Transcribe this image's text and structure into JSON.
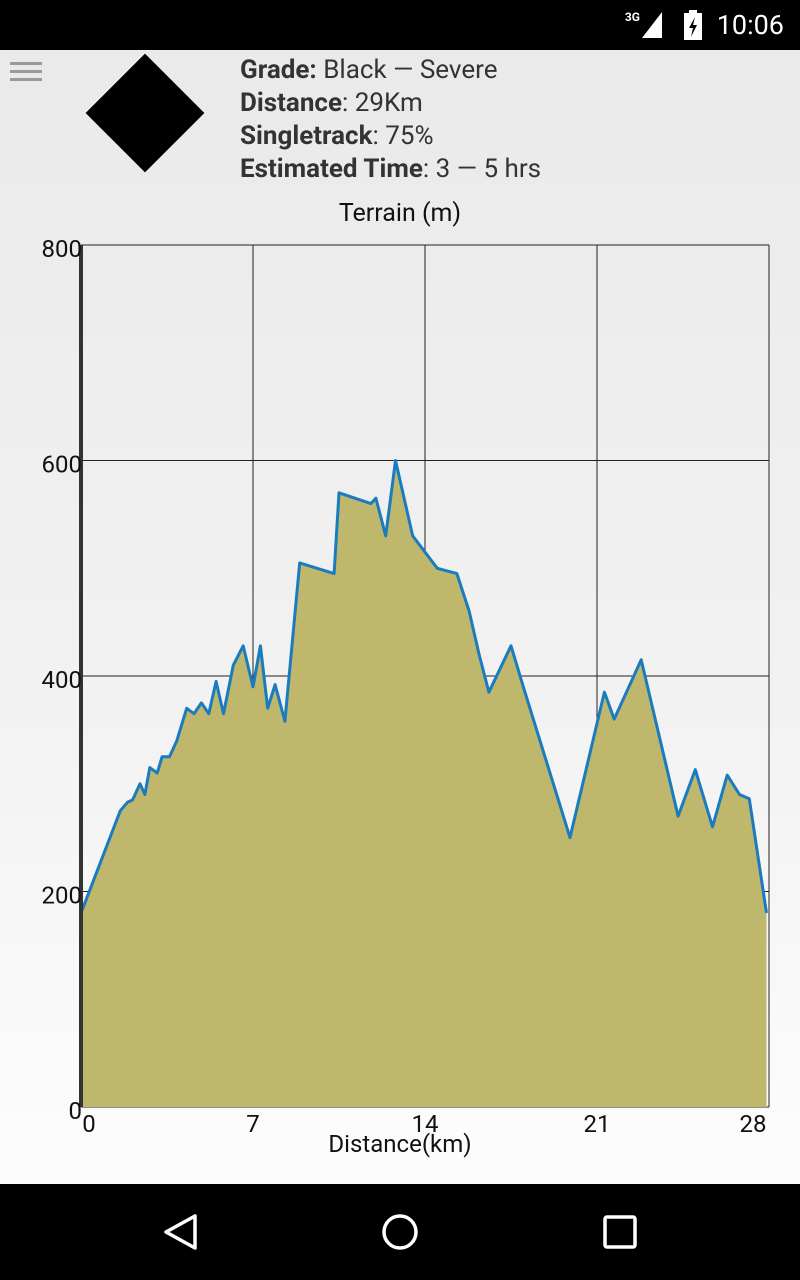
{
  "status_bar": {
    "network": "3G",
    "time": "10:06"
  },
  "header": {
    "grade_label": "Grade:",
    "grade_value": " Black — Severe",
    "distance_label": "Distance",
    "distance_value": ": 29Km",
    "singletrack_label": "Singletrack",
    "singletrack_value": ": 75%",
    "time_label": "Estimated Time",
    "time_value": ": 3 — 5 hrs"
  },
  "colors": {
    "fill": "#bfb86c",
    "line": "#1a7bbf",
    "grid": "#222222"
  },
  "chart_data": {
    "type": "area",
    "title": "Terrain (m)",
    "xlabel": "Distance(km)",
    "ylabel": "",
    "xlim": [
      0,
      28
    ],
    "ylim": [
      0,
      800
    ],
    "x_ticks": [
      0,
      7,
      14,
      21,
      28
    ],
    "y_ticks": [
      0,
      200,
      400,
      600,
      800
    ],
    "x_tick_labels": [
      "0",
      "7",
      "14",
      "21",
      "28"
    ],
    "y_tick_labels": [
      "0",
      "200",
      "400",
      "600",
      "800"
    ],
    "grid": true,
    "series": [
      {
        "x": [
          0,
          1.6,
          1.9,
          2.1,
          2.4,
          2.6,
          2.8,
          3.1,
          3.3,
          3.6,
          3.9,
          4.3,
          4.6,
          4.9,
          5.2,
          5.5,
          5.8,
          6.2,
          6.6,
          7.0,
          7.3,
          7.6,
          7.9,
          8.3,
          8.9,
          10.3,
          10.5,
          11.8,
          12.0,
          12.4,
          12.8,
          13.5,
          14.5,
          15.3,
          15.8,
          16.2,
          16.6,
          17.5,
          18.0,
          19.9,
          21.3,
          21.7,
          22.8,
          24.3,
          25.0,
          25.7,
          26.3,
          26.8,
          27.2,
          27.9
        ],
        "y": [
          180,
          275,
          283,
          285,
          300,
          290,
          315,
          310,
          325,
          325,
          340,
          370,
          365,
          375,
          365,
          395,
          365,
          410,
          428,
          390,
          428,
          370,
          392,
          358,
          505,
          495,
          570,
          560,
          565,
          530,
          600,
          530,
          500,
          495,
          460,
          420,
          385,
          428,
          390,
          250,
          385,
          360,
          415,
          270,
          313,
          260,
          308,
          290,
          286,
          180
        ]
      }
    ]
  },
  "nav": {
    "back": "back",
    "home": "home",
    "recents": "recents"
  }
}
